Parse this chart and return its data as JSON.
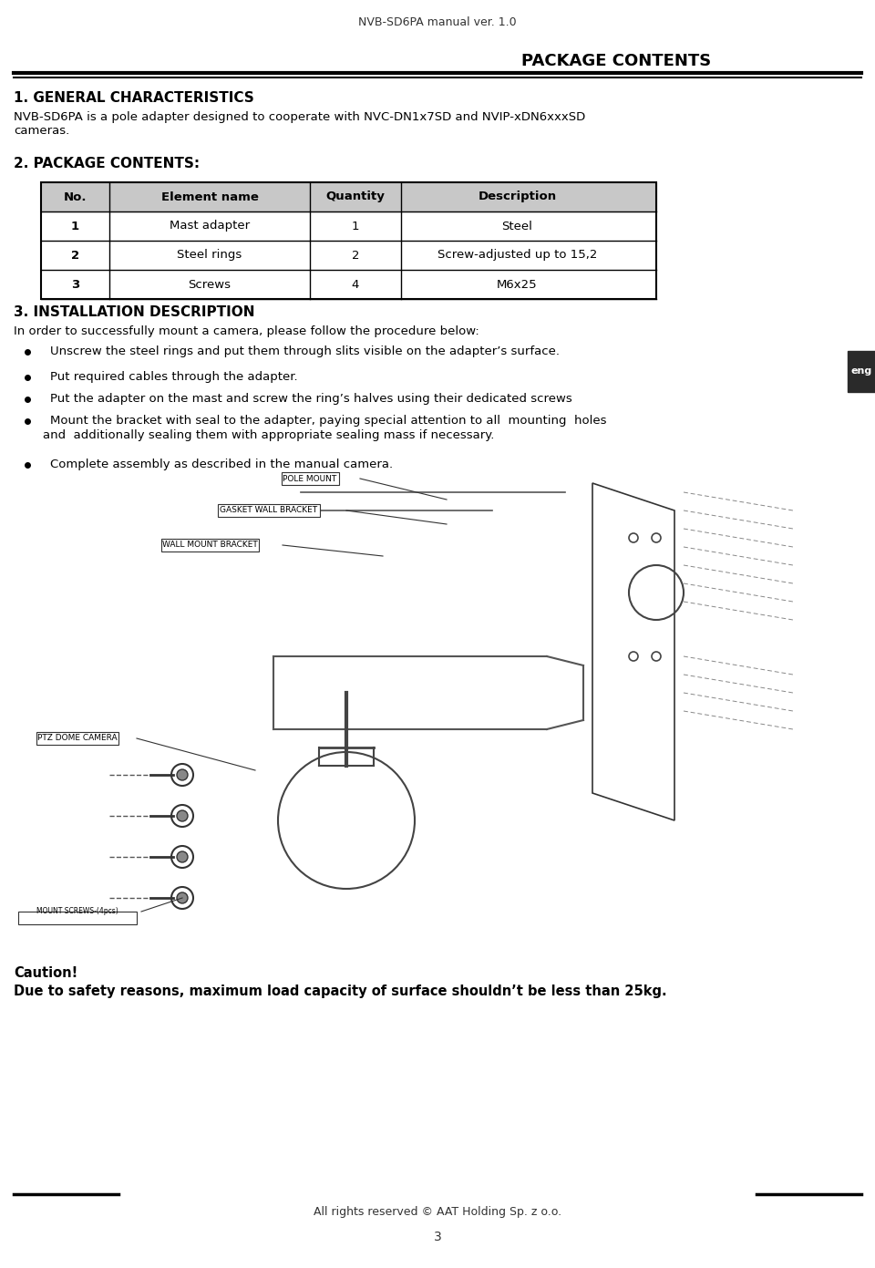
{
  "page_title": "NVB-SD6PA manual ver. 1.0",
  "section_title_right": "PACKAGE CONTENTS",
  "section1_title": "1. GENERAL CHARACTERISTICS",
  "section1_body": "NVB-SD6PA is a pole adapter designed to cooperate with NVC-DN1x7SD and NVIP-xDN6xxxSD\ncameras.",
  "section2_title": "2. PACKAGE CONTENTS:",
  "table_headers": [
    "No.",
    "Element name",
    "Quantity",
    "Description"
  ],
  "table_rows": [
    [
      "1",
      "Mast adapter",
      "1",
      "Steel"
    ],
    [
      "2",
      "Steel rings",
      "2",
      "Screw-adjusted up to 15,2"
    ],
    [
      "3",
      "Screws",
      "4",
      "M6x25"
    ]
  ],
  "section3_title": "3. INSTALLATION DESCRIPTION",
  "section3_intro": "In order to successfully mount a camera, please follow the procedure below:",
  "bullets": [
    "Unscrew the steel rings and put them through slits visible on the adapter’s surface.",
    "Put required cables through the adapter.",
    "Put the adapter on the mast and screw the ring’s halves using their dedicated screws",
    "Mount the bracket with seal to the adapter, paying special attention to all  mounting  holes\nand  additionally sealing them with appropriate sealing mass if necessary."
  ],
  "bullet_complete": "Complete assembly as described in the manual camera.",
  "caution_title": "Caution!",
  "caution_body": "Due to safety reasons, maximum load capacity of surface shouldn’t be less than 25kg.",
  "footer_text": "All rights reserved © AAT Holding Sp. z o.o.",
  "page_number": "3",
  "eng_label": "eng",
  "bg_color": "#ffffff",
  "text_color": "#000000",
  "table_header_bg": "#c8c8c8",
  "table_border_color": "#000000",
  "double_line_color": "#000000"
}
